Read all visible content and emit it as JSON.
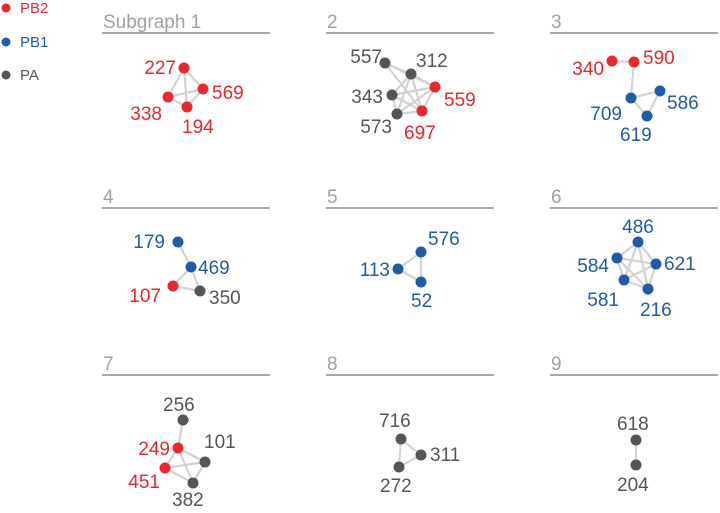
{
  "colors": {
    "PB2": "#e8272e",
    "PB1": "#1f5ca8",
    "PA": "#555555",
    "edge": "#d2d2d2",
    "divider": "#a8a8a8",
    "title": "#a0a0a0"
  },
  "legend": [
    {
      "key": "PB2",
      "label": "PB2"
    },
    {
      "key": "PB1",
      "label": "PB1"
    },
    {
      "key": "PA",
      "label": "PA"
    }
  ],
  "panels": [
    {
      "title": "Subgraph 1",
      "nodes": [
        {
          "id": "227",
          "type": "PB2"
        },
        {
          "id": "569",
          "type": "PB2"
        },
        {
          "id": "338",
          "type": "PB2"
        },
        {
          "id": "194",
          "type": "PB2"
        }
      ],
      "edges": [
        [
          "227",
          "569"
        ],
        [
          "227",
          "338"
        ],
        [
          "227",
          "194"
        ],
        [
          "569",
          "338"
        ],
        [
          "569",
          "194"
        ],
        [
          "338",
          "194"
        ]
      ]
    },
    {
      "title": "2",
      "nodes": [
        {
          "id": "557",
          "type": "PA"
        },
        {
          "id": "312",
          "type": "PA"
        },
        {
          "id": "343",
          "type": "PA"
        },
        {
          "id": "559",
          "type": "PB2"
        },
        {
          "id": "573",
          "type": "PA"
        },
        {
          "id": "697",
          "type": "PB2"
        }
      ],
      "edges": [
        [
          "557",
          "312"
        ],
        [
          "557",
          "559"
        ],
        [
          "557",
          "697"
        ],
        [
          "312",
          "343"
        ],
        [
          "312",
          "559"
        ],
        [
          "312",
          "697"
        ],
        [
          "312",
          "573"
        ],
        [
          "343",
          "559"
        ],
        [
          "343",
          "573"
        ],
        [
          "343",
          "697"
        ],
        [
          "559",
          "697"
        ],
        [
          "573",
          "697"
        ],
        [
          "573",
          "559"
        ]
      ]
    },
    {
      "title": "3",
      "nodes": [
        {
          "id": "340",
          "type": "PB2"
        },
        {
          "id": "590",
          "type": "PB2"
        },
        {
          "id": "709",
          "type": "PB1"
        },
        {
          "id": "586",
          "type": "PB1"
        },
        {
          "id": "619",
          "type": "PB1"
        }
      ],
      "edges": [
        [
          "340",
          "590"
        ],
        [
          "590",
          "709"
        ],
        [
          "709",
          "586"
        ],
        [
          "709",
          "619"
        ],
        [
          "586",
          "619"
        ]
      ]
    },
    {
      "title": "4",
      "nodes": [
        {
          "id": "179",
          "type": "PB1"
        },
        {
          "id": "469",
          "type": "PB1"
        },
        {
          "id": "107",
          "type": "PB2"
        },
        {
          "id": "350",
          "type": "PA"
        }
      ],
      "edges": [
        [
          "179",
          "469"
        ],
        [
          "469",
          "107"
        ],
        [
          "469",
          "350"
        ],
        [
          "107",
          "350"
        ]
      ]
    },
    {
      "title": "5",
      "nodes": [
        {
          "id": "576",
          "type": "PB1"
        },
        {
          "id": "113",
          "type": "PB1"
        },
        {
          "id": "52",
          "type": "PB1"
        }
      ],
      "edges": [
        [
          "576",
          "113"
        ],
        [
          "576",
          "52"
        ],
        [
          "113",
          "52"
        ]
      ]
    },
    {
      "title": "6",
      "nodes": [
        {
          "id": "486",
          "type": "PB1"
        },
        {
          "id": "584",
          "type": "PB1"
        },
        {
          "id": "621",
          "type": "PB1"
        },
        {
          "id": "581",
          "type": "PB1"
        },
        {
          "id": "216",
          "type": "PB1"
        }
      ],
      "edges": [
        [
          "486",
          "584"
        ],
        [
          "486",
          "621"
        ],
        [
          "486",
          "581"
        ],
        [
          "486",
          "216"
        ],
        [
          "584",
          "621"
        ],
        [
          "584",
          "581"
        ],
        [
          "584",
          "216"
        ],
        [
          "621",
          "581"
        ],
        [
          "621",
          "216"
        ],
        [
          "581",
          "216"
        ]
      ]
    },
    {
      "title": "7",
      "nodes": [
        {
          "id": "256",
          "type": "PA"
        },
        {
          "id": "249",
          "type": "PB2"
        },
        {
          "id": "101",
          "type": "PA"
        },
        {
          "id": "451",
          "type": "PB2"
        },
        {
          "id": "382",
          "type": "PA"
        }
      ],
      "edges": [
        [
          "256",
          "249"
        ],
        [
          "249",
          "101"
        ],
        [
          "249",
          "451"
        ],
        [
          "249",
          "382"
        ],
        [
          "101",
          "451"
        ],
        [
          "101",
          "382"
        ],
        [
          "451",
          "382"
        ]
      ]
    },
    {
      "title": "8",
      "nodes": [
        {
          "id": "716",
          "type": "PA"
        },
        {
          "id": "311",
          "type": "PA"
        },
        {
          "id": "272",
          "type": "PA"
        }
      ],
      "edges": [
        [
          "716",
          "311"
        ],
        [
          "716",
          "272"
        ],
        [
          "311",
          "272"
        ]
      ]
    },
    {
      "title": "9",
      "nodes": [
        {
          "id": "618",
          "type": "PA"
        },
        {
          "id": "204",
          "type": "PA"
        }
      ],
      "edges": [
        [
          "618",
          "204"
        ]
      ]
    }
  ]
}
